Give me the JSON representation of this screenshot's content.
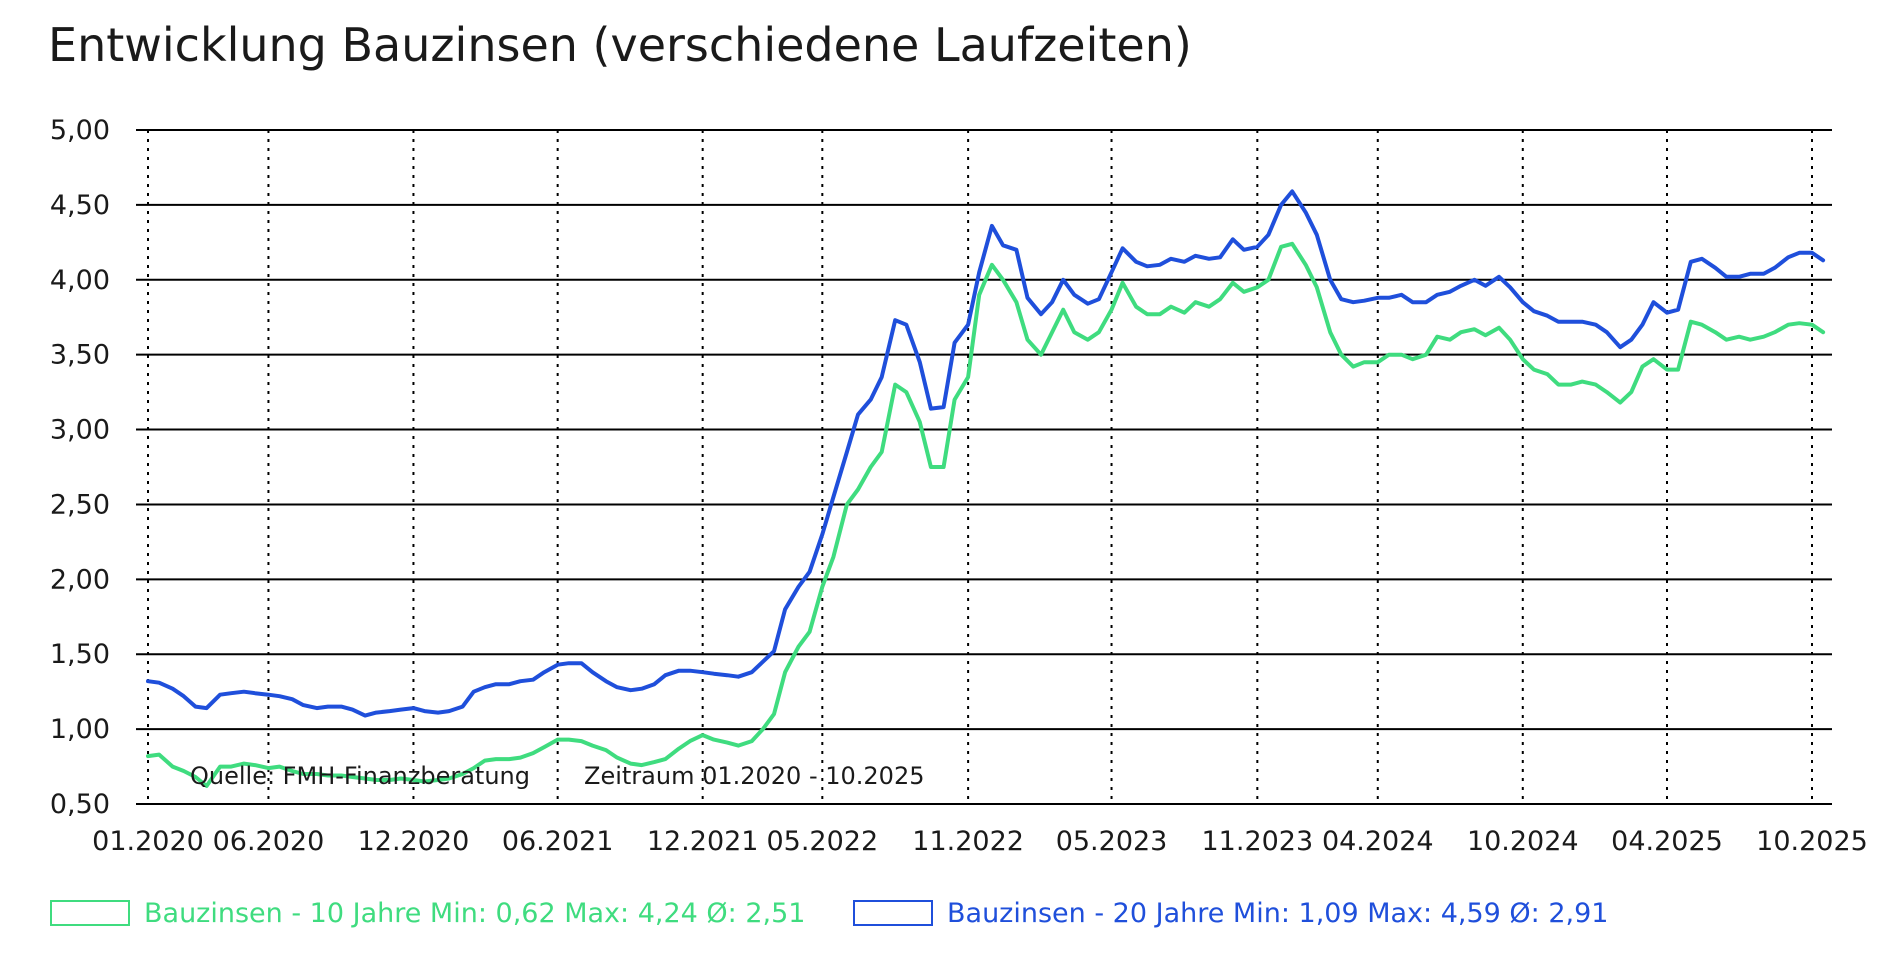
{
  "chart_data": {
    "type": "line",
    "title": "Entwicklung Bauzinsen (verschiedene Laufzeiten)",
    "xlabel": "",
    "ylabel": "",
    "ylim": [
      0.5,
      5.0
    ],
    "yticks": [
      "0,50",
      "1,00",
      "1,50",
      "2,00",
      "2,50",
      "3,00",
      "3,50",
      "4,00",
      "4,50",
      "5,00"
    ],
    "xticks": [
      "01.2020",
      "06.2020",
      "12.2020",
      "06.2021",
      "12.2021",
      "05.2022",
      "11.2022",
      "05.2023",
      "11.2023",
      "04.2024",
      "10.2024",
      "04.2025",
      "10.2025"
    ],
    "grid": "horizontal solid, vertical dotted",
    "legend_position": "bottom",
    "annotations": {
      "source": "Quelle: FMH-Finanzberatung",
      "period": "Zeitraum 01.2020 - 10.2025"
    },
    "series": [
      {
        "name": "Bauzinsen - 10 Jahre",
        "legend_label": "Bauzinsen - 10 Jahre Min: 0,62 Max: 4,24 Ø: 2,51",
        "color": "#3fdc7f",
        "points": [
          [
            "2020-01",
            0.82
          ],
          [
            "2020-01-15",
            0.83
          ],
          [
            "2020-02",
            0.75
          ],
          [
            "2020-02-15",
            0.72
          ],
          [
            "2020-03",
            0.68
          ],
          [
            "2020-03-15",
            0.62
          ],
          [
            "2020-04",
            0.75
          ],
          [
            "2020-04-15",
            0.75
          ],
          [
            "2020-05",
            0.77
          ],
          [
            "2020-05-15",
            0.76
          ],
          [
            "2020-06",
            0.74
          ],
          [
            "2020-06-15",
            0.75
          ],
          [
            "2020-07",
            0.72
          ],
          [
            "2020-07-15",
            0.7
          ],
          [
            "2020-08",
            0.7
          ],
          [
            "2020-08-15",
            0.69
          ],
          [
            "2020-09",
            0.69
          ],
          [
            "2020-09-15",
            0.68
          ],
          [
            "2020-10",
            0.67
          ],
          [
            "2020-10-15",
            0.66
          ],
          [
            "2020-11",
            0.66
          ],
          [
            "2020-11-15",
            0.67
          ],
          [
            "2020-12",
            0.66
          ],
          [
            "2020-12-15",
            0.65
          ],
          [
            "2021-01",
            0.66
          ],
          [
            "2021-01-15",
            0.67
          ],
          [
            "2021-02",
            0.7
          ],
          [
            "2021-02-15",
            0.74
          ],
          [
            "2021-03",
            0.79
          ],
          [
            "2021-03-15",
            0.8
          ],
          [
            "2021-04",
            0.8
          ],
          [
            "2021-04-15",
            0.81
          ],
          [
            "2021-05",
            0.84
          ],
          [
            "2021-05-15",
            0.88
          ],
          [
            "2021-06",
            0.93
          ],
          [
            "2021-06-15",
            0.93
          ],
          [
            "2021-07",
            0.92
          ],
          [
            "2021-07-15",
            0.89
          ],
          [
            "2021-08",
            0.86
          ],
          [
            "2021-08-15",
            0.81
          ],
          [
            "2021-09",
            0.77
          ],
          [
            "2021-09-15",
            0.76
          ],
          [
            "2021-10",
            0.78
          ],
          [
            "2021-10-15",
            0.8
          ],
          [
            "2021-11",
            0.87
          ],
          [
            "2021-11-15",
            0.92
          ],
          [
            "2021-12",
            0.96
          ],
          [
            "2021-12-15",
            0.93
          ],
          [
            "2022-01",
            0.91
          ],
          [
            "2022-01-15",
            0.89
          ],
          [
            "2022-02",
            0.92
          ],
          [
            "2022-02-15",
            1.0
          ],
          [
            "2022-03",
            1.1
          ],
          [
            "2022-03-15",
            1.38
          ],
          [
            "2022-04",
            1.55
          ],
          [
            "2022-04-15",
            1.65
          ],
          [
            "2022-05",
            1.95
          ],
          [
            "2022-05-15",
            2.15
          ],
          [
            "2022-06",
            2.5
          ],
          [
            "2022-06-15",
            2.6
          ],
          [
            "2022-07",
            2.75
          ],
          [
            "2022-07-15",
            2.85
          ],
          [
            "2022-08",
            3.3
          ],
          [
            "2022-08-15",
            3.25
          ],
          [
            "2022-09",
            3.05
          ],
          [
            "2022-09-15",
            2.75
          ],
          [
            "2022-10",
            2.75
          ],
          [
            "2022-10-15",
            3.2
          ],
          [
            "2022-11",
            3.35
          ],
          [
            "2022-11-15",
            3.9
          ],
          [
            "2022-12",
            4.1
          ],
          [
            "2022-12-15",
            4.0
          ],
          [
            "2023-01",
            3.85
          ],
          [
            "2023-01-15",
            3.6
          ],
          [
            "2023-02",
            3.5
          ],
          [
            "2023-02-15",
            3.65
          ],
          [
            "2023-03",
            3.8
          ],
          [
            "2023-03-15",
            3.65
          ],
          [
            "2023-04",
            3.6
          ],
          [
            "2023-04-15",
            3.65
          ],
          [
            "2023-05",
            3.8
          ],
          [
            "2023-05-15",
            3.98
          ],
          [
            "2023-06",
            3.82
          ],
          [
            "2023-06-15",
            3.77
          ],
          [
            "2023-07",
            3.77
          ],
          [
            "2023-07-15",
            3.82
          ],
          [
            "2023-08",
            3.78
          ],
          [
            "2023-08-15",
            3.85
          ],
          [
            "2023-09",
            3.82
          ],
          [
            "2023-09-15",
            3.87
          ],
          [
            "2023-10",
            3.98
          ],
          [
            "2023-10-15",
            3.92
          ],
          [
            "2023-11",
            3.95
          ],
          [
            "2023-11-15",
            4.0
          ],
          [
            "2023-12",
            4.22
          ],
          [
            "2023-12-15",
            4.24
          ],
          [
            "2024-01",
            4.1
          ],
          [
            "2024-01-15",
            3.95
          ],
          [
            "2024-02",
            3.65
          ],
          [
            "2024-02-15",
            3.5
          ],
          [
            "2024-03",
            3.42
          ],
          [
            "2024-03-15",
            3.45
          ],
          [
            "2024-04",
            3.45
          ],
          [
            "2024-04-15",
            3.5
          ],
          [
            "2024-05",
            3.5
          ],
          [
            "2024-05-15",
            3.47
          ],
          [
            "2024-06",
            3.5
          ],
          [
            "2024-06-15",
            3.62
          ],
          [
            "2024-07",
            3.6
          ],
          [
            "2024-07-15",
            3.65
          ],
          [
            "2024-08",
            3.67
          ],
          [
            "2024-08-15",
            3.63
          ],
          [
            "2024-09",
            3.68
          ],
          [
            "2024-09-15",
            3.6
          ],
          [
            "2024-10",
            3.47
          ],
          [
            "2024-10-15",
            3.4
          ],
          [
            "2024-11",
            3.37
          ],
          [
            "2024-11-15",
            3.3
          ],
          [
            "2024-12",
            3.3
          ],
          [
            "2024-12-15",
            3.32
          ],
          [
            "2025-01",
            3.3
          ],
          [
            "2025-01-15",
            3.25
          ],
          [
            "2025-02",
            3.18
          ],
          [
            "2025-02-15",
            3.25
          ],
          [
            "2025-03",
            3.42
          ],
          [
            "2025-03-15",
            3.47
          ],
          [
            "2025-04",
            3.4
          ],
          [
            "2025-04-15",
            3.4
          ],
          [
            "2025-05",
            3.72
          ],
          [
            "2025-05-15",
            3.7
          ],
          [
            "2025-06",
            3.65
          ],
          [
            "2025-06-15",
            3.6
          ],
          [
            "2025-07",
            3.62
          ],
          [
            "2025-07-15",
            3.6
          ],
          [
            "2025-08",
            3.62
          ],
          [
            "2025-08-15",
            3.65
          ],
          [
            "2025-09",
            3.7
          ],
          [
            "2025-09-15",
            3.71
          ],
          [
            "2025-10",
            3.7
          ],
          [
            "2025-10-15",
            3.65
          ]
        ]
      },
      {
        "name": "Bauzinsen - 20 Jahre",
        "legend_label": "Bauzinsen - 20 Jahre Min: 1,09 Max: 4,59 Ø: 2,91",
        "color": "#1f4fdb",
        "points": [
          [
            "2020-01",
            1.32
          ],
          [
            "2020-01-15",
            1.31
          ],
          [
            "2020-02",
            1.27
          ],
          [
            "2020-02-15",
            1.22
          ],
          [
            "2020-03",
            1.15
          ],
          [
            "2020-03-15",
            1.14
          ],
          [
            "2020-04",
            1.23
          ],
          [
            "2020-04-15",
            1.24
          ],
          [
            "2020-05",
            1.25
          ],
          [
            "2020-05-15",
            1.24
          ],
          [
            "2020-06",
            1.23
          ],
          [
            "2020-06-15",
            1.22
          ],
          [
            "2020-07",
            1.2
          ],
          [
            "2020-07-15",
            1.16
          ],
          [
            "2020-08",
            1.14
          ],
          [
            "2020-08-15",
            1.15
          ],
          [
            "2020-09",
            1.15
          ],
          [
            "2020-09-15",
            1.13
          ],
          [
            "2020-10",
            1.09
          ],
          [
            "2020-10-15",
            1.11
          ],
          [
            "2020-11",
            1.12
          ],
          [
            "2020-11-15",
            1.13
          ],
          [
            "2020-12",
            1.14
          ],
          [
            "2020-12-15",
            1.12
          ],
          [
            "2021-01",
            1.11
          ],
          [
            "2021-01-15",
            1.12
          ],
          [
            "2021-02",
            1.15
          ],
          [
            "2021-02-15",
            1.25
          ],
          [
            "2021-03",
            1.28
          ],
          [
            "2021-03-15",
            1.3
          ],
          [
            "2021-04",
            1.3
          ],
          [
            "2021-04-15",
            1.32
          ],
          [
            "2021-05",
            1.33
          ],
          [
            "2021-05-15",
            1.38
          ],
          [
            "2021-06",
            1.43
          ],
          [
            "2021-06-15",
            1.44
          ],
          [
            "2021-07",
            1.44
          ],
          [
            "2021-07-15",
            1.38
          ],
          [
            "2021-08",
            1.32
          ],
          [
            "2021-08-15",
            1.28
          ],
          [
            "2021-09",
            1.26
          ],
          [
            "2021-09-15",
            1.27
          ],
          [
            "2021-10",
            1.3
          ],
          [
            "2021-10-15",
            1.36
          ],
          [
            "2021-11",
            1.39
          ],
          [
            "2021-11-15",
            1.39
          ],
          [
            "2021-12",
            1.38
          ],
          [
            "2021-12-15",
            1.37
          ],
          [
            "2022-01",
            1.36
          ],
          [
            "2022-01-15",
            1.35
          ],
          [
            "2022-02",
            1.38
          ],
          [
            "2022-02-15",
            1.45
          ],
          [
            "2022-03",
            1.52
          ],
          [
            "2022-03-15",
            1.8
          ],
          [
            "2022-04",
            1.95
          ],
          [
            "2022-04-15",
            2.05
          ],
          [
            "2022-05",
            2.3
          ],
          [
            "2022-05-15",
            2.55
          ],
          [
            "2022-06",
            2.85
          ],
          [
            "2022-06-15",
            3.1
          ],
          [
            "2022-07",
            3.2
          ],
          [
            "2022-07-15",
            3.35
          ],
          [
            "2022-08",
            3.73
          ],
          [
            "2022-08-15",
            3.7
          ],
          [
            "2022-09",
            3.45
          ],
          [
            "2022-09-15",
            3.14
          ],
          [
            "2022-10",
            3.15
          ],
          [
            "2022-10-15",
            3.58
          ],
          [
            "2022-11",
            3.7
          ],
          [
            "2022-11-15",
            4.05
          ],
          [
            "2022-12",
            4.36
          ],
          [
            "2022-12-15",
            4.23
          ],
          [
            "2023-01",
            4.2
          ],
          [
            "2023-01-15",
            3.88
          ],
          [
            "2023-02",
            3.77
          ],
          [
            "2023-02-15",
            3.85
          ],
          [
            "2023-03",
            4.0
          ],
          [
            "2023-03-15",
            3.9
          ],
          [
            "2023-04",
            3.84
          ],
          [
            "2023-04-15",
            3.87
          ],
          [
            "2023-05",
            4.05
          ],
          [
            "2023-05-15",
            4.21
          ],
          [
            "2023-06",
            4.12
          ],
          [
            "2023-06-15",
            4.09
          ],
          [
            "2023-07",
            4.1
          ],
          [
            "2023-07-15",
            4.14
          ],
          [
            "2023-08",
            4.12
          ],
          [
            "2023-08-15",
            4.16
          ],
          [
            "2023-09",
            4.14
          ],
          [
            "2023-09-15",
            4.15
          ],
          [
            "2023-10",
            4.27
          ],
          [
            "2023-10-15",
            4.2
          ],
          [
            "2023-11",
            4.22
          ],
          [
            "2023-11-15",
            4.3
          ],
          [
            "2023-12",
            4.5
          ],
          [
            "2023-12-15",
            4.59
          ],
          [
            "2024-01",
            4.45
          ],
          [
            "2024-01-15",
            4.3
          ],
          [
            "2024-02",
            4.0
          ],
          [
            "2024-02-15",
            3.87
          ],
          [
            "2024-03",
            3.85
          ],
          [
            "2024-03-15",
            3.86
          ],
          [
            "2024-04",
            3.88
          ],
          [
            "2024-04-15",
            3.88
          ],
          [
            "2024-05",
            3.9
          ],
          [
            "2024-05-15",
            3.85
          ],
          [
            "2024-06",
            3.85
          ],
          [
            "2024-06-15",
            3.9
          ],
          [
            "2024-07",
            3.92
          ],
          [
            "2024-07-15",
            3.96
          ],
          [
            "2024-08",
            4.0
          ],
          [
            "2024-08-15",
            3.96
          ],
          [
            "2024-09",
            4.02
          ],
          [
            "2024-09-15",
            3.95
          ],
          [
            "2024-10",
            3.85
          ],
          [
            "2024-10-15",
            3.79
          ],
          [
            "2024-11",
            3.76
          ],
          [
            "2024-11-15",
            3.72
          ],
          [
            "2024-12",
            3.72
          ],
          [
            "2024-12-15",
            3.72
          ],
          [
            "2025-01",
            3.7
          ],
          [
            "2025-01-15",
            3.65
          ],
          [
            "2025-02",
            3.55
          ],
          [
            "2025-02-15",
            3.6
          ],
          [
            "2025-03",
            3.7
          ],
          [
            "2025-03-15",
            3.85
          ],
          [
            "2025-04",
            3.78
          ],
          [
            "2025-04-15",
            3.8
          ],
          [
            "2025-05",
            4.12
          ],
          [
            "2025-05-15",
            4.14
          ],
          [
            "2025-06",
            4.08
          ],
          [
            "2025-06-15",
            4.02
          ],
          [
            "2025-07",
            4.02
          ],
          [
            "2025-07-15",
            4.04
          ],
          [
            "2025-08",
            4.04
          ],
          [
            "2025-08-15",
            4.08
          ],
          [
            "2025-09",
            4.15
          ],
          [
            "2025-09-15",
            4.18
          ],
          [
            "2025-10",
            4.18
          ],
          [
            "2025-10-15",
            4.13
          ]
        ]
      }
    ]
  }
}
